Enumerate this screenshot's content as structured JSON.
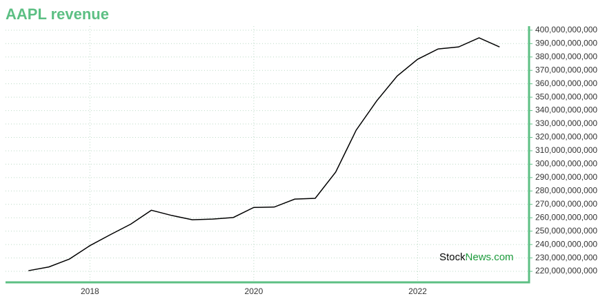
{
  "chart_data": {
    "type": "line",
    "title": "AAPL revenue",
    "watermark_left": "Stock",
    "watermark_right": "News.com",
    "x": [
      2017.25,
      2017.5,
      2017.75,
      2018,
      2018.25,
      2018.5,
      2018.75,
      2019,
      2019.25,
      2019.5,
      2019.75,
      2020,
      2020.25,
      2020.5,
      2020.75,
      2021,
      2021.25,
      2021.5,
      2021.75,
      2022,
      2022.25,
      2022.5,
      2022.75,
      2023
    ],
    "series": [
      {
        "name": "AAPL revenue",
        "color": "#000000",
        "values": [
          220500000000,
          223300000000,
          229200000000,
          239200000000,
          247400000000,
          255300000000,
          265600000000,
          261700000000,
          258500000000,
          259000000000,
          260200000000,
          267700000000,
          268000000000,
          273900000000,
          274500000000,
          294100000000,
          325400000000,
          347200000000,
          365800000000,
          378300000000,
          386000000000,
          387500000000,
          394300000000,
          387500000000
        ]
      }
    ],
    "xlim": [
      2016.97,
      2023.36
    ],
    "xticks": [
      2018,
      2020,
      2022
    ],
    "ylim": [
      211800000000,
      403000000000
    ],
    "yticks": [
      {
        "value": 220000000000,
        "label": "220,000,000,000"
      },
      {
        "value": 230000000000,
        "label": "230,000,000,000"
      },
      {
        "value": 240000000000,
        "label": "240,000,000,000"
      },
      {
        "value": 250000000000,
        "label": "250,000,000,000"
      },
      {
        "value": 260000000000,
        "label": "260,000,000,000"
      },
      {
        "value": 270000000000,
        "label": "270,000,000,000"
      },
      {
        "value": 280000000000,
        "label": "280,000,000,000"
      },
      {
        "value": 290000000000,
        "label": "290,000,000,000"
      },
      {
        "value": 300000000000,
        "label": "300,000,000,000"
      },
      {
        "value": 310000000000,
        "label": "310,000,000,000"
      },
      {
        "value": 320000000000,
        "label": "320,000,000,000"
      },
      {
        "value": 330000000000,
        "label": "330,000,000,000"
      },
      {
        "value": 340000000000,
        "label": "340,000,000,000"
      },
      {
        "value": 350000000000,
        "label": "350,000,000,000"
      },
      {
        "value": 360000000000,
        "label": "360,000,000,000"
      },
      {
        "value": 370000000000,
        "label": "370,000,000,000"
      },
      {
        "value": 380000000000,
        "label": "380,000,000,000"
      },
      {
        "value": 390000000000,
        "label": "390,000,000,000"
      },
      {
        "value": 400000000000,
        "label": "400,000,000,000"
      }
    ],
    "grid": true
  }
}
